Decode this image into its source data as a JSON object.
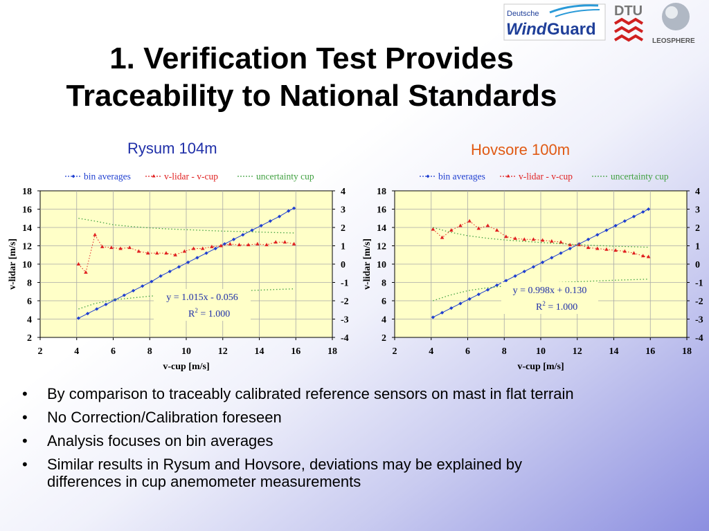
{
  "slide": {
    "title_line1": "1. Verification Test Provides",
    "title_line2": "Traceability to National Standards",
    "bullets": [
      "By comparison to traceably calibrated reference sensors on mast in flat terrain",
      "No Correction/Calibration foreseen",
      "Analysis focuses on bin averages",
      "Similar results in Rysum and Hovsore, deviations may be explained by differences in cup anemometer measurements"
    ]
  },
  "logos": {
    "windguard_small": "Deutsche",
    "windguard_main_a": "Wind",
    "windguard_main_b": "Guard",
    "dtu": "DTU",
    "leosphere": "LEOSPHERE"
  },
  "chart_data": [
    {
      "type": "scatter",
      "title": "Rysum 104m",
      "title_color": "#1f2fa8",
      "xlabel": "v-cup [m/s]",
      "ylabel": "v-lidar [m/s]",
      "xlim": [
        2,
        18
      ],
      "ylim": [
        2,
        18
      ],
      "y2lim": [
        -4,
        4
      ],
      "xticks": [
        2,
        4,
        6,
        8,
        10,
        12,
        14,
        16,
        18
      ],
      "yticks": [
        2,
        4,
        6,
        8,
        10,
        12,
        14,
        16,
        18
      ],
      "y2ticks": [
        4,
        3,
        2,
        1,
        0,
        -1,
        -2,
        -3,
        -4
      ],
      "grid": true,
      "legend_position": "top",
      "legend": [
        "bin averages",
        "v-lidar - v-cup",
        "uncertainty cup"
      ],
      "annotation_line1": "y = 1.015x - 0.056",
      "annotation_r2": "R",
      "annotation_r2_sup": "2",
      "annotation_r2_value": " = 1.000",
      "series": [
        {
          "name": "bin averages",
          "axis": "left",
          "color": "#1f3fd0",
          "marker": "diamond",
          "x": [
            4.1,
            4.6,
            5.1,
            5.6,
            6.1,
            6.6,
            7.1,
            7.6,
            8.1,
            8.6,
            9.1,
            9.6,
            10.1,
            10.6,
            11.1,
            11.6,
            12.1,
            12.6,
            13.1,
            13.6,
            14.1,
            14.6,
            15.1,
            15.6,
            15.9
          ],
          "y": [
            4.1,
            4.6,
            5.1,
            5.6,
            6.1,
            6.6,
            7.1,
            7.6,
            8.1,
            8.7,
            9.2,
            9.7,
            10.2,
            10.7,
            11.2,
            11.7,
            12.2,
            12.7,
            13.2,
            13.7,
            14.2,
            14.7,
            15.2,
            15.8,
            16.1
          ]
        },
        {
          "name": "v-lidar - v-cup",
          "axis": "right",
          "color": "#e02020",
          "marker": "triangle",
          "x": [
            4.1,
            4.5,
            5.0,
            5.4,
            5.9,
            6.4,
            6.9,
            7.4,
            7.9,
            8.4,
            8.9,
            9.4,
            9.9,
            10.4,
            10.9,
            11.4,
            11.9,
            12.4,
            12.9,
            13.4,
            13.9,
            14.4,
            14.9,
            15.4,
            15.9
          ],
          "y": [
            0.0,
            -0.45,
            1.6,
            0.95,
            0.9,
            0.85,
            0.9,
            0.7,
            0.6,
            0.6,
            0.6,
            0.5,
            0.7,
            0.85,
            0.85,
            0.95,
            1.0,
            1.1,
            1.05,
            1.05,
            1.1,
            1.05,
            1.2,
            1.2,
            1.1
          ]
        },
        {
          "name": "uncertainty cup",
          "axis": "right",
          "color": "#40a040",
          "style": "dotted",
          "x": [
            4.1,
            5,
            6,
            7,
            8,
            9,
            10,
            11,
            12,
            13,
            14,
            15,
            15.9
          ],
          "y": [
            2.5,
            2.35,
            2.15,
            2.05,
            1.98,
            1.92,
            1.88,
            1.84,
            1.8,
            1.78,
            1.75,
            1.72,
            1.7
          ]
        },
        {
          "name": "uncertainty cup lower",
          "axis": "right",
          "color": "#40a040",
          "style": "dotted",
          "x": [
            4.1,
            5,
            6,
            7,
            8,
            9,
            10,
            11,
            12,
            13,
            14,
            15,
            15.9
          ],
          "y": [
            -2.45,
            -2.15,
            -1.95,
            -1.85,
            -1.75,
            -1.68,
            -1.62,
            -1.56,
            -1.5,
            -1.46,
            -1.42,
            -1.38,
            -1.35
          ]
        }
      ]
    },
    {
      "type": "scatter",
      "title": "Hovsore 100m",
      "title_color": "#e05a14",
      "xlabel": "v-cup [m/s]",
      "ylabel": "v-lidar [m/s]",
      "xlim": [
        2,
        18
      ],
      "ylim": [
        2,
        18
      ],
      "y2lim": [
        -4,
        4
      ],
      "xticks": [
        2,
        4,
        6,
        8,
        10,
        12,
        14,
        16,
        18
      ],
      "yticks": [
        2,
        4,
        6,
        8,
        10,
        12,
        14,
        16,
        18
      ],
      "y2ticks": [
        4,
        3,
        2,
        1,
        0,
        -1,
        -2,
        -3,
        -4
      ],
      "grid": true,
      "legend_position": "top",
      "legend": [
        "bin averages",
        "v-lidar - v-cup",
        "uncertainty cup"
      ],
      "annotation_line1": "y = 0.998x + 0.130",
      "annotation_r2": "R",
      "annotation_r2_sup": "2",
      "annotation_r2_value": " = 1.000",
      "series": [
        {
          "name": "bin averages",
          "axis": "left",
          "color": "#1f3fd0",
          "marker": "diamond",
          "x": [
            4.1,
            4.6,
            5.1,
            5.6,
            6.1,
            6.6,
            7.1,
            7.6,
            8.1,
            8.6,
            9.1,
            9.6,
            10.1,
            10.6,
            11.1,
            11.6,
            12.1,
            12.6,
            13.1,
            13.6,
            14.1,
            14.6,
            15.1,
            15.6,
            15.9
          ],
          "y": [
            4.2,
            4.7,
            5.2,
            5.7,
            6.2,
            6.7,
            7.2,
            7.7,
            8.2,
            8.7,
            9.2,
            9.7,
            10.2,
            10.7,
            11.2,
            11.7,
            12.2,
            12.7,
            13.2,
            13.7,
            14.2,
            14.7,
            15.2,
            15.7,
            16.0
          ]
        },
        {
          "name": "v-lidar - v-cup",
          "axis": "right",
          "color": "#e02020",
          "marker": "triangle",
          "x": [
            4.1,
            4.6,
            5.1,
            5.6,
            6.1,
            6.6,
            7.1,
            7.6,
            8.1,
            8.6,
            9.1,
            9.6,
            10.1,
            10.6,
            11.1,
            11.6,
            12.1,
            12.6,
            13.1,
            13.6,
            14.1,
            14.6,
            15.1,
            15.6,
            15.9
          ],
          "y": [
            1.9,
            1.45,
            1.85,
            2.1,
            2.35,
            1.95,
            2.1,
            1.85,
            1.5,
            1.4,
            1.35,
            1.35,
            1.3,
            1.25,
            1.2,
            1.05,
            1.05,
            0.9,
            0.85,
            0.8,
            0.75,
            0.7,
            0.6,
            0.45,
            0.4
          ]
        },
        {
          "name": "uncertainty cup",
          "axis": "right",
          "color": "#40a040",
          "style": "dotted",
          "x": [
            4.1,
            5,
            6,
            7,
            8,
            9,
            10,
            11,
            12,
            13,
            14,
            15,
            15.9
          ],
          "y": [
            2.0,
            1.75,
            1.55,
            1.42,
            1.32,
            1.25,
            1.18,
            1.12,
            1.06,
            1.02,
            0.98,
            0.95,
            0.92
          ]
        },
        {
          "name": "uncertainty cup lower",
          "axis": "right",
          "color": "#40a040",
          "style": "dotted",
          "x": [
            4.1,
            5,
            6,
            7,
            8,
            9,
            10,
            11,
            12,
            13,
            14,
            15,
            15.9
          ],
          "y": [
            -2.0,
            -1.7,
            -1.45,
            -1.3,
            -1.2,
            -1.12,
            -1.06,
            -1.0,
            -0.96,
            -0.92,
            -0.88,
            -0.85,
            -0.82
          ]
        }
      ]
    }
  ]
}
